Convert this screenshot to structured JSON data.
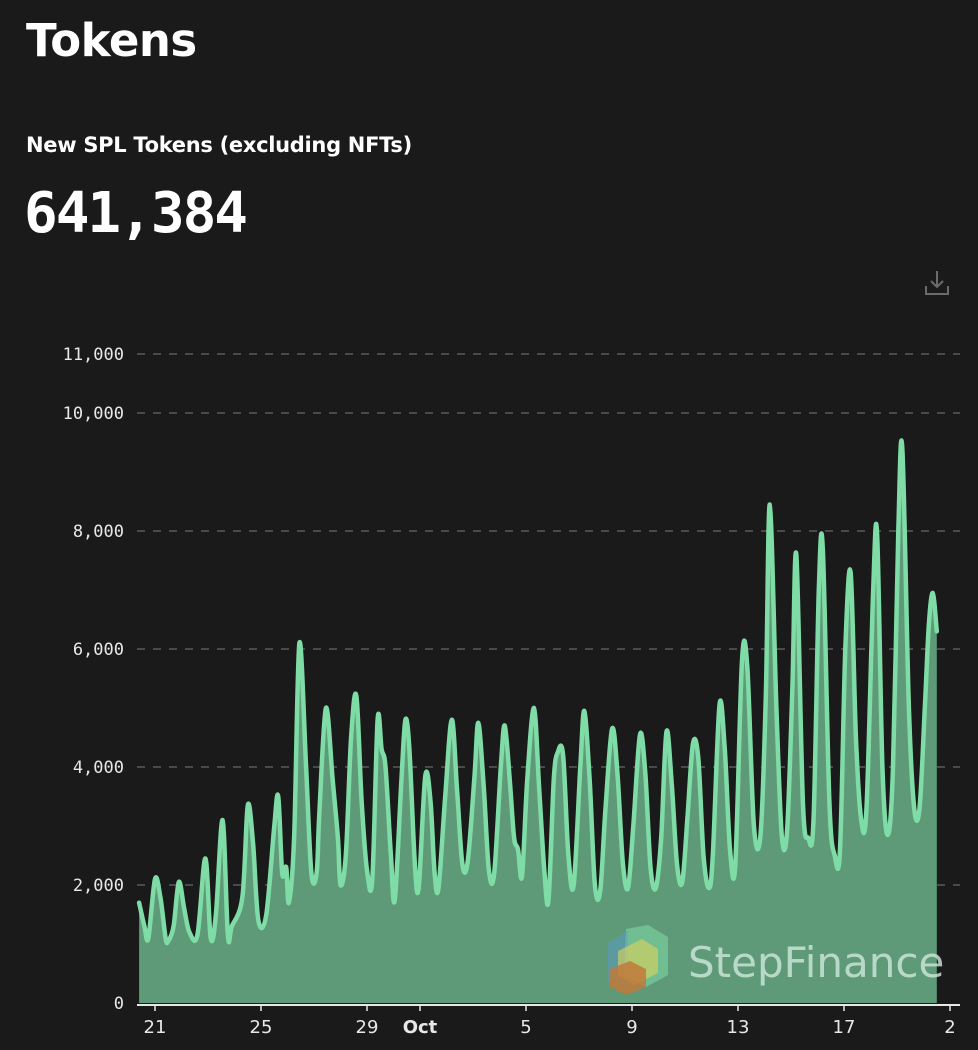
{
  "page": {
    "title": "Tokens"
  },
  "metric": {
    "label": "New SPL Tokens (excluding NFTs)",
    "value": "641,384"
  },
  "toolbar": {
    "download_icon": "download-icon"
  },
  "watermark": {
    "text": "StepFinance",
    "logo_icon": "stepfinance-logo-icon"
  },
  "colors": {
    "background": "#1a1a1a",
    "line": "#7fdca6",
    "area": "#5e9a78",
    "grid": "#5a5a5a"
  },
  "chart_data": {
    "type": "area",
    "title": "",
    "xlabel": "",
    "ylabel": "",
    "ylim": [
      0,
      11000
    ],
    "grid": "horizontal dashed",
    "x_ticks": [
      {
        "day": 0,
        "label": "21",
        "bold": false
      },
      {
        "day": 4,
        "label": "25",
        "bold": false
      },
      {
        "day": 8,
        "label": "29",
        "bold": false
      },
      {
        "day": 10,
        "label": "Oct",
        "bold": true
      },
      {
        "day": 14,
        "label": "5",
        "bold": false
      },
      {
        "day": 18,
        "label": "9",
        "bold": false
      },
      {
        "day": 22,
        "label": "13",
        "bold": false
      },
      {
        "day": 26,
        "label": "17",
        "bold": false
      },
      {
        "day": 30,
        "label": "2",
        "bold": false
      }
    ],
    "y_ticks": [
      {
        "value": 0,
        "label": "0"
      },
      {
        "value": 2000,
        "label": "2,000"
      },
      {
        "value": 4000,
        "label": "4,000"
      },
      {
        "value": 6000,
        "label": "6,000"
      },
      {
        "value": 8000,
        "label": "8,000"
      },
      {
        "value": 10000,
        "label": "10,000"
      },
      {
        "value": 11000,
        "label": "11,000"
      }
    ],
    "series": [
      {
        "name": "",
        "points": [
          [
            -0.6,
            1700
          ],
          [
            -0.4,
            1300
          ],
          [
            -0.25,
            1100
          ],
          [
            0.0,
            2100
          ],
          [
            0.2,
            1800
          ],
          [
            0.4,
            1100
          ],
          [
            0.5,
            1050
          ],
          [
            0.7,
            1300
          ],
          [
            0.9,
            2050
          ],
          [
            1.1,
            1600
          ],
          [
            1.3,
            1200
          ],
          [
            1.6,
            1150
          ],
          [
            1.9,
            2450
          ],
          [
            2.1,
            1100
          ],
          [
            2.3,
            1500
          ],
          [
            2.55,
            3100
          ],
          [
            2.75,
            1150
          ],
          [
            2.9,
            1300
          ],
          [
            3.3,
            1800
          ],
          [
            3.5,
            3350
          ],
          [
            3.7,
            2700
          ],
          [
            3.9,
            1400
          ],
          [
            4.2,
            1500
          ],
          [
            4.5,
            3000
          ],
          [
            4.65,
            3500
          ],
          [
            4.8,
            2200
          ],
          [
            4.95,
            2300
          ],
          [
            5.05,
            1700
          ],
          [
            5.25,
            2800
          ],
          [
            5.45,
            6100
          ],
          [
            5.7,
            4000
          ],
          [
            5.9,
            2200
          ],
          [
            6.1,
            2200
          ],
          [
            6.2,
            3200
          ],
          [
            6.45,
            5000
          ],
          [
            6.7,
            3800
          ],
          [
            6.9,
            2800
          ],
          [
            7.0,
            2000
          ],
          [
            7.2,
            2500
          ],
          [
            7.4,
            4500
          ],
          [
            7.6,
            5200
          ],
          [
            7.8,
            3400
          ],
          [
            8.0,
            2250
          ],
          [
            8.2,
            2100
          ],
          [
            8.4,
            4800
          ],
          [
            8.55,
            4300
          ],
          [
            8.7,
            4000
          ],
          [
            8.9,
            2500
          ],
          [
            9.05,
            1750
          ],
          [
            9.3,
            3800
          ],
          [
            9.45,
            4800
          ],
          [
            9.6,
            4300
          ],
          [
            9.8,
            2400
          ],
          [
            9.95,
            1950
          ],
          [
            10.2,
            3850
          ],
          [
            10.4,
            3400
          ],
          [
            10.55,
            2200
          ],
          [
            10.7,
            1950
          ],
          [
            10.95,
            3500
          ],
          [
            11.2,
            4800
          ],
          [
            11.4,
            3600
          ],
          [
            11.6,
            2350
          ],
          [
            11.8,
            2400
          ],
          [
            12.05,
            3800
          ],
          [
            12.2,
            4750
          ],
          [
            12.4,
            3700
          ],
          [
            12.6,
            2250
          ],
          [
            12.8,
            2200
          ],
          [
            13.05,
            4000
          ],
          [
            13.2,
            4700
          ],
          [
            13.4,
            3700
          ],
          [
            13.55,
            2800
          ],
          [
            13.7,
            2600
          ],
          [
            13.85,
            2150
          ],
          [
            14.05,
            3800
          ],
          [
            14.3,
            5000
          ],
          [
            14.5,
            3600
          ],
          [
            14.7,
            2200
          ],
          [
            14.85,
            1750
          ],
          [
            15.05,
            3800
          ],
          [
            15.2,
            4250
          ],
          [
            15.4,
            4200
          ],
          [
            15.6,
            2500
          ],
          [
            15.8,
            2000
          ],
          [
            16.05,
            4000
          ],
          [
            16.2,
            4950
          ],
          [
            16.4,
            3800
          ],
          [
            16.6,
            2000
          ],
          [
            16.8,
            1900
          ],
          [
            17.0,
            3300
          ],
          [
            17.25,
            4650
          ],
          [
            17.45,
            3900
          ],
          [
            17.65,
            2400
          ],
          [
            17.85,
            1950
          ],
          [
            18.05,
            3000
          ],
          [
            18.3,
            4550
          ],
          [
            18.5,
            3900
          ],
          [
            18.7,
            2300
          ],
          [
            18.9,
            1950
          ],
          [
            19.1,
            2800
          ],
          [
            19.3,
            4600
          ],
          [
            19.5,
            3700
          ],
          [
            19.7,
            2350
          ],
          [
            19.9,
            2050
          ],
          [
            20.1,
            3200
          ],
          [
            20.3,
            4400
          ],
          [
            20.5,
            4150
          ],
          [
            20.7,
            2500
          ],
          [
            20.9,
            1950
          ],
          [
            21.05,
            2500
          ],
          [
            21.3,
            5050
          ],
          [
            21.5,
            4300
          ],
          [
            21.7,
            2600
          ],
          [
            21.9,
            2350
          ],
          [
            22.15,
            5800
          ],
          [
            22.35,
            5700
          ],
          [
            22.6,
            3000
          ],
          [
            22.85,
            2850
          ],
          [
            23.05,
            5200
          ],
          [
            23.2,
            8450
          ],
          [
            23.45,
            5000
          ],
          [
            23.65,
            2850
          ],
          [
            23.85,
            2900
          ],
          [
            24.05,
            5300
          ],
          [
            24.2,
            7600
          ],
          [
            24.45,
            3400
          ],
          [
            24.65,
            2800
          ],
          [
            24.85,
            3100
          ],
          [
            25.05,
            7000
          ],
          [
            25.2,
            7700
          ],
          [
            25.45,
            3400
          ],
          [
            25.65,
            2500
          ],
          [
            25.85,
            2600
          ],
          [
            26.05,
            6000
          ],
          [
            26.25,
            7300
          ],
          [
            26.45,
            4500
          ],
          [
            26.65,
            3100
          ],
          [
            26.85,
            3300
          ],
          [
            27.1,
            7000
          ],
          [
            27.25,
            7950
          ],
          [
            27.45,
            4000
          ],
          [
            27.65,
            2850
          ],
          [
            27.85,
            4000
          ],
          [
            28.05,
            8000
          ],
          [
            28.2,
            9400
          ],
          [
            28.45,
            5000
          ],
          [
            28.65,
            3300
          ],
          [
            28.85,
            3300
          ],
          [
            29.05,
            5000
          ],
          [
            29.2,
            6400
          ],
          [
            29.35,
            6950
          ],
          [
            29.5,
            6300
          ]
        ]
      }
    ]
  }
}
